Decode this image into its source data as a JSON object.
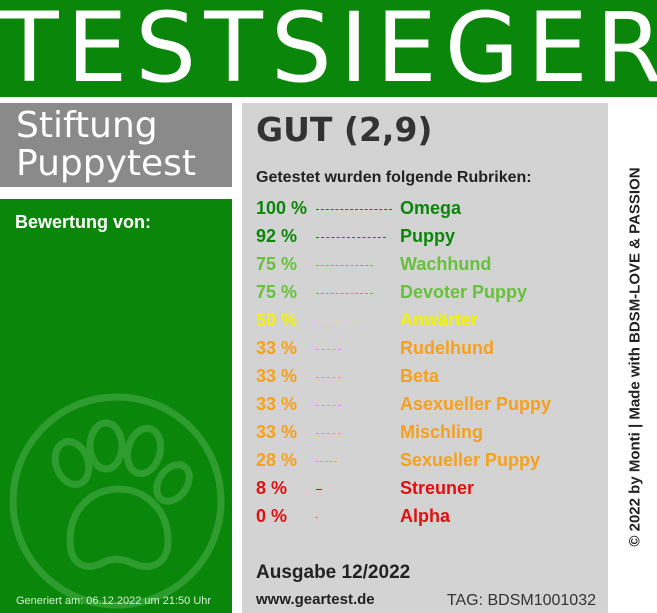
{
  "header": {
    "title": "TESTSIEGER",
    "bg_color": "#0a870a"
  },
  "brand": {
    "line1": "Stiftung",
    "line2": "Puppytest",
    "bg_color": "#8a8a8a"
  },
  "left": {
    "bewertung_label": "Bewertung von:",
    "icon": "paw-icon",
    "generated": "Generiert am: 06.12.2022 um 21:50 Uhr"
  },
  "result": {
    "grade": "GUT (2,9)",
    "rubriken_heading": "Getestet wurden folgende Rubriken:",
    "rubriken": [
      {
        "pct": "100 %",
        "value": 100,
        "name": "Omega",
        "color": "#0a870a"
      },
      {
        "pct": "92 %",
        "value": 92,
        "name": "Puppy",
        "color": "#0a870a"
      },
      {
        "pct": "75 %",
        "value": 75,
        "name": "Wachhund",
        "color": "#66c23a"
      },
      {
        "pct": "75 %",
        "value": 75,
        "name": "Devoter Puppy",
        "color": "#66c23a"
      },
      {
        "pct": "50 %",
        "value": 50,
        "name": "Anwärter",
        "color": "#f2f20a"
      },
      {
        "pct": "33 %",
        "value": 33,
        "name": "Rudelhund",
        "color": "#f5a01e"
      },
      {
        "pct": "33 %",
        "value": 33,
        "name": "Beta",
        "color": "#f5a01e"
      },
      {
        "pct": "33 %",
        "value": 33,
        "name": "Asexueller Puppy",
        "color": "#f5a01e"
      },
      {
        "pct": "33 %",
        "value": 33,
        "name": "Mischling",
        "color": "#f5a01e"
      },
      {
        "pct": "28 %",
        "value": 28,
        "name": "Sexueller Puppy",
        "color": "#f5a01e"
      },
      {
        "pct": "8 %",
        "value": 8,
        "name": "Streuner",
        "color": "#e01010"
      },
      {
        "pct": "0 %",
        "value": 0,
        "name": "Alpha",
        "color": "#e01010"
      }
    ],
    "ausgabe": "Ausgabe 12/2022",
    "website": "www.geartest.de",
    "tag": "TAG: BDSM1001032"
  },
  "side_credit": "© 2022 by Monti | Made with BDSM-LOVE & PASSION"
}
